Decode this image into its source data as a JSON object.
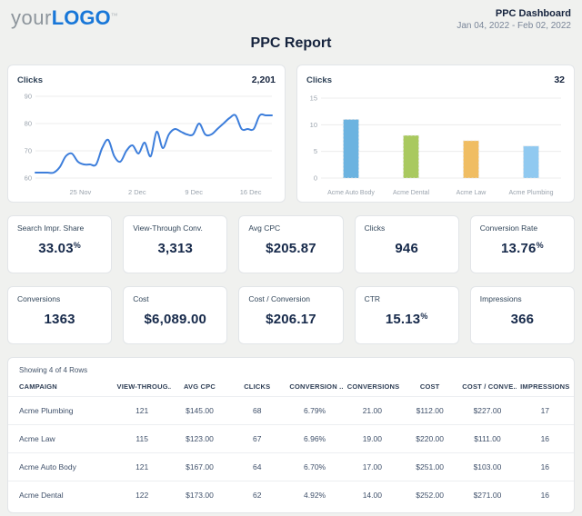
{
  "header": {
    "logo_your": "your",
    "logo_main": "LOGO",
    "logo_tm": "™",
    "dashboard_title": "PPC Dashboard",
    "date_range": "Jan 04, 2022 - Feb 02, 2022",
    "report_title": "PPC Report"
  },
  "colors": {
    "accent_blue": "#1877d8",
    "line_blue": "#3d7edb",
    "navy_text": "#16294a",
    "axis_text": "#9aa3ad",
    "grid_line": "#ececec",
    "bar_auto_body": "#6cb3e0",
    "bar_dental": "#a9c95f",
    "bar_law": "#f0bd62",
    "bar_plumbing": "#90c9f0"
  },
  "chart_data": [
    {
      "type": "line",
      "title": "Clicks",
      "total": "2,201",
      "ylabel": "Clicks",
      "ylim": [
        60,
        90
      ],
      "yticks": [
        60,
        70,
        80,
        90
      ],
      "grid": true,
      "line_color": "#3d7edb",
      "xticks": [
        {
          "label": "25 Nov",
          "pos": 0.19
        },
        {
          "label": "2 Dec",
          "pos": 0.43
        },
        {
          "label": "9 Dec",
          "pos": 0.67
        },
        {
          "label": "16 Dec",
          "pos": 0.91
        }
      ],
      "values": [
        62,
        62,
        62,
        62,
        64,
        68,
        69,
        66,
        65,
        65,
        65,
        71,
        74,
        68,
        66,
        70,
        72,
        69,
        73,
        68,
        77,
        71,
        76,
        78,
        77,
        76,
        76,
        80,
        76,
        76,
        78,
        80,
        82,
        83,
        78,
        78,
        78,
        83,
        83,
        83
      ]
    },
    {
      "type": "bar",
      "title": "Clicks",
      "total": "32",
      "ylim": [
        0,
        15
      ],
      "yticks": [
        0,
        5,
        10,
        15
      ],
      "grid": true,
      "categories": [
        "Acme Auto Body",
        "Acme Dental",
        "Acme Law",
        "Acme Plumbing"
      ],
      "values": [
        11,
        8,
        7,
        6
      ],
      "bar_colors": [
        "#6cb3e0",
        "#a9c95f",
        "#f0bd62",
        "#90c9f0"
      ]
    }
  ],
  "kpis": [
    {
      "label": "Search Impr. Share",
      "value": "33.03",
      "suffix": "%"
    },
    {
      "label": "View-Through Conv.",
      "value": "3,313",
      "suffix": ""
    },
    {
      "label": "Avg CPC",
      "value": "$205.87",
      "suffix": ""
    },
    {
      "label": "Clicks",
      "value": "946",
      "suffix": ""
    },
    {
      "label": "Conversion Rate",
      "value": "13.76",
      "suffix": "%"
    },
    {
      "label": "Conversions",
      "value": "1363",
      "suffix": ""
    },
    {
      "label": "Cost",
      "value": "$6,089.00",
      "suffix": ""
    },
    {
      "label": "Cost / Conversion",
      "value": "$206.17",
      "suffix": ""
    },
    {
      "label": "CTR",
      "value": "15.13",
      "suffix": "%"
    },
    {
      "label": "Impressions",
      "value": "366",
      "suffix": ""
    }
  ],
  "table": {
    "showing": "Showing 4 of 4 Rows",
    "columns": [
      "CAMPAIGN",
      "VIEW-THROUG...",
      "AVG CPC",
      "CLICKS",
      "CONVERSION ...",
      "CONVERSIONS",
      "COST",
      "COST / CONVE...",
      "IMPRESSIONS"
    ],
    "rows": [
      [
        "Acme Plumbing",
        "121",
        "$145.00",
        "68",
        "6.79%",
        "21.00",
        "$112.00",
        "$227.00",
        "17"
      ],
      [
        "Acme Law",
        "115",
        "$123.00",
        "67",
        "6.96%",
        "19.00",
        "$220.00",
        "$111.00",
        "16"
      ],
      [
        "Acme Auto Body",
        "121",
        "$167.00",
        "64",
        "6.70%",
        "17.00",
        "$251.00",
        "$103.00",
        "16"
      ],
      [
        "Acme Dental",
        "122",
        "$173.00",
        "62",
        "4.92%",
        "14.00",
        "$252.00",
        "$271.00",
        "16"
      ]
    ]
  }
}
